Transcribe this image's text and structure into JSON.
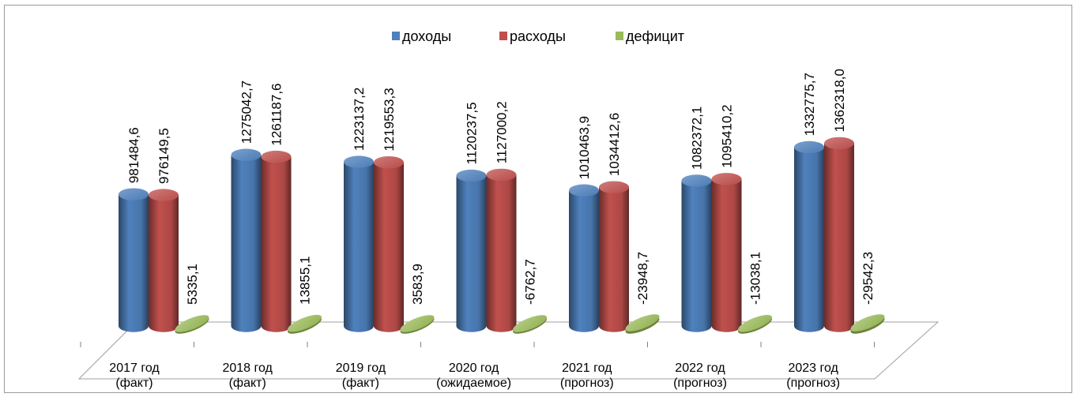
{
  "chart_data": {
    "type": "bar",
    "categories": [
      [
        "2017 год",
        "(факт)"
      ],
      [
        "2018 год",
        "(факт)"
      ],
      [
        "2019 год",
        "(факт)"
      ],
      [
        "2020 год",
        "(ожидаемое)"
      ],
      [
        "2021 год",
        "(прогноз)"
      ],
      [
        "2022 год",
        "(прогноз)"
      ],
      [
        "2023 год",
        "(прогноз)"
      ]
    ],
    "series": [
      {
        "name": "доходы",
        "color": "#4F81BD",
        "values": [
          981484.6,
          1275042.7,
          1223137.2,
          1120237.5,
          1010463.9,
          1082372.1,
          1332775.7
        ],
        "labels": [
          "981484,6",
          "1275042,7",
          "1223137,2",
          "1120237,5",
          "1010463,9",
          "1082372,1",
          "1332775,7"
        ]
      },
      {
        "name": "расходы",
        "color": "#C0504D",
        "values": [
          976149.5,
          1261187.6,
          1219553.3,
          1127000.2,
          1034412.6,
          1095410.2,
          1362318.0
        ],
        "labels": [
          "976149,5",
          "1261187,6",
          "1219553,3",
          "1127000,2",
          "1034412,6",
          "1095410,2",
          "1362318,0"
        ]
      },
      {
        "name": "дефицит",
        "color": "#9BBB59",
        "values": [
          5335.1,
          13855.1,
          3583.9,
          -6762.7,
          -23948.7,
          -13038.1,
          -29542.3
        ],
        "labels": [
          "5335,1",
          "13855,1",
          "3583,9",
          "-6762,7",
          "-23948,7",
          "-13038,1",
          "-29542,3"
        ]
      }
    ],
    "legend_position": "top",
    "style": "3d-cylinder",
    "grid": false
  }
}
